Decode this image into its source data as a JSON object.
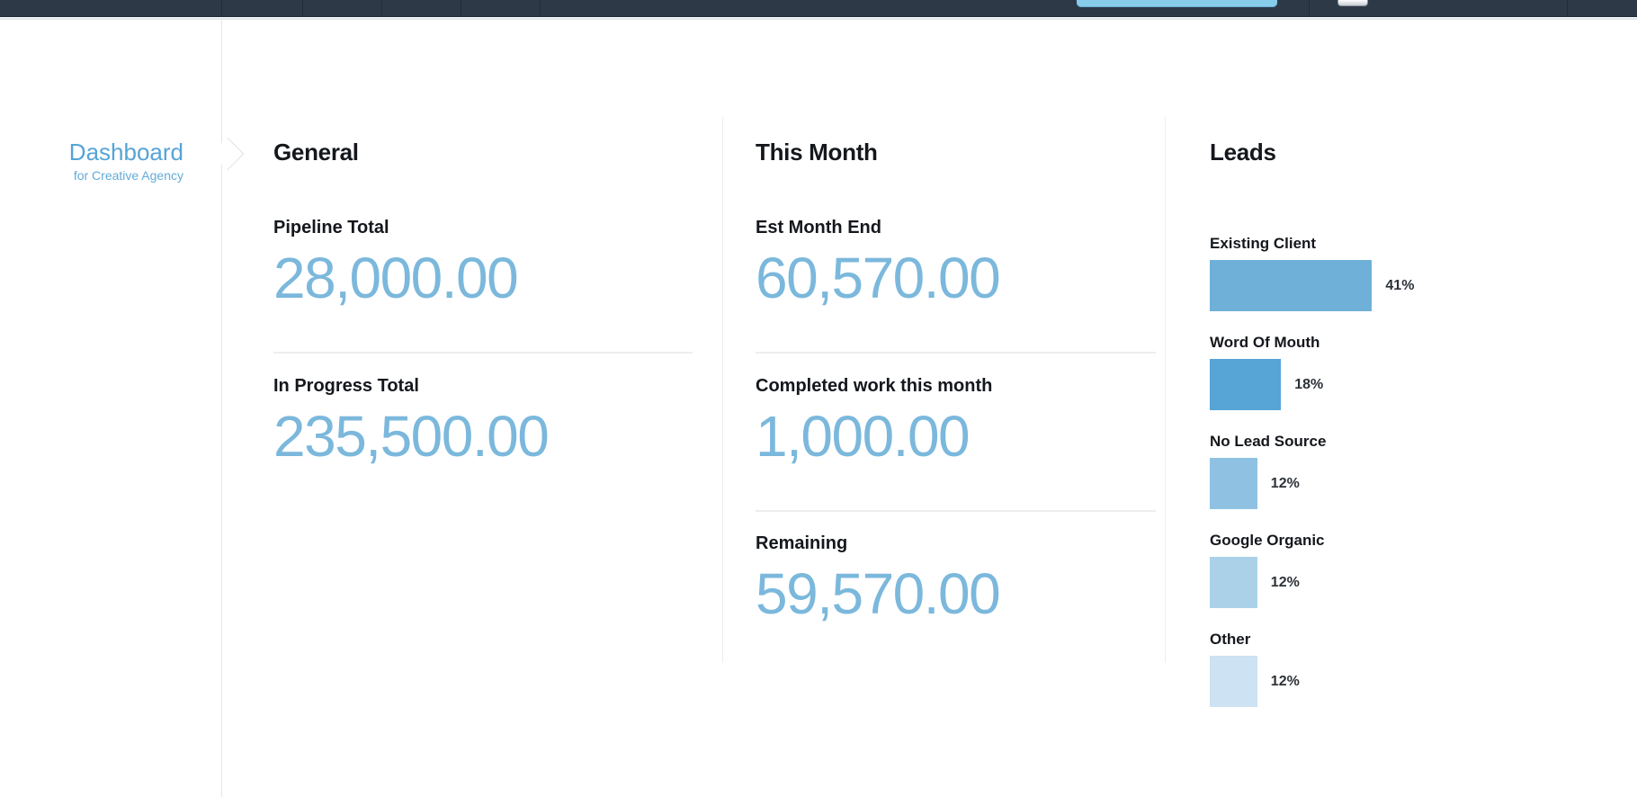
{
  "topbar": {
    "colors": {
      "background": "#2e3947",
      "action_button": "#87cce9"
    }
  },
  "sidebar": {
    "title": "Dashboard",
    "subtitle": "for Creative Agency",
    "accent_color": "#55a4d7"
  },
  "metrics_columns": [
    {
      "title": "General",
      "metrics": [
        {
          "label": "Pipeline Total",
          "value": "28,000.00"
        },
        {
          "label": "In Progress Total",
          "value": "235,500.00"
        }
      ]
    },
    {
      "title": "This Month",
      "metrics": [
        {
          "label": "Est Month End",
          "value": "60,570.00"
        },
        {
          "label": "Completed work this month",
          "value": "1,000.00"
        },
        {
          "label": "Remaining",
          "value": "59,570.00"
        }
      ]
    }
  ],
  "chart_data": {
    "type": "bar",
    "orientation": "horizontal",
    "title": "Leads",
    "categories": [
      "Existing Client",
      "Word Of Mouth",
      "No Lead Source",
      "Google Organic",
      "Other"
    ],
    "values": [
      41,
      18,
      12,
      12,
      12
    ],
    "unit": "%",
    "value_labels": [
      "41%",
      "18%",
      "12%",
      "12%",
      "12%"
    ],
    "bar_colors": [
      "#6fb0d9",
      "#57a4d7",
      "#8fc2e2",
      "#abd1e9",
      "#cde2f2"
    ],
    "xlim": [
      0,
      100
    ],
    "grid": false,
    "legend": false
  },
  "colors": {
    "metric_value_blue": "#7bb8dc",
    "heading_dark": "#14171c"
  }
}
